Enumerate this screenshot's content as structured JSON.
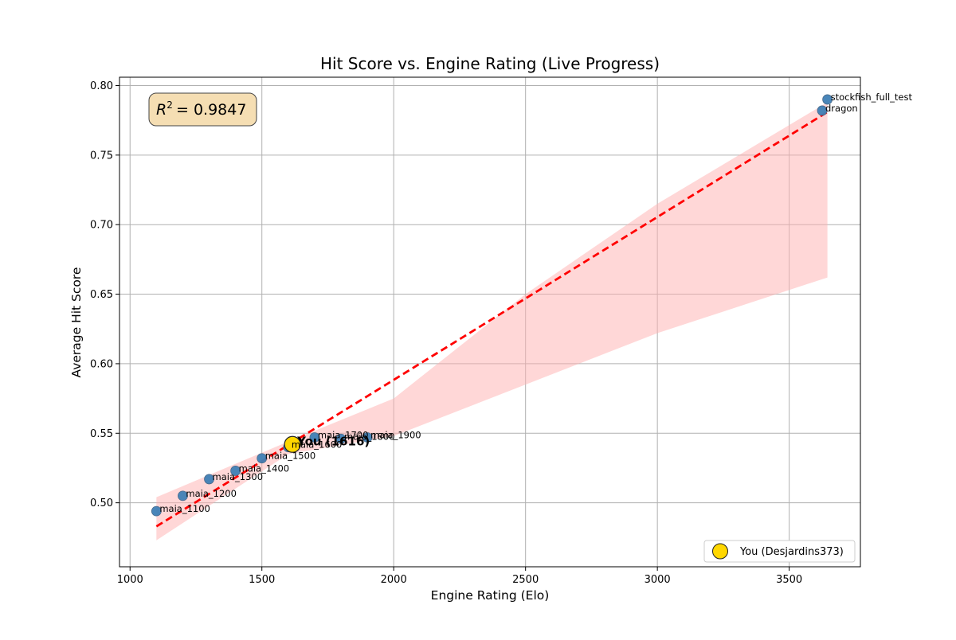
{
  "chart_data": {
    "type": "scatter",
    "title": "Hit Score vs. Engine Rating (Live Progress)",
    "xlabel": "Engine Rating (Elo)",
    "ylabel": "Average Hit Score",
    "xlim": [
      960,
      3770
    ],
    "ylim": [
      0.454,
      0.806
    ],
    "xticks": [
      1000,
      1500,
      2000,
      2500,
      3000,
      3500
    ],
    "yticks": [
      0.5,
      0.55,
      0.6,
      0.65,
      0.7,
      0.75,
      0.8
    ],
    "grid": true,
    "legend_position": "lower-right",
    "r_squared_text": "= 0.9847",
    "points": [
      {
        "label": "maia_1100",
        "x": 1100,
        "y": 0.494
      },
      {
        "label": "maia_1200",
        "x": 1200,
        "y": 0.505
      },
      {
        "label": "maia_1300",
        "x": 1300,
        "y": 0.517
      },
      {
        "label": "maia_1400",
        "x": 1400,
        "y": 0.523
      },
      {
        "label": "maia_1500",
        "x": 1500,
        "y": 0.532
      },
      {
        "label": "maia_1600",
        "x": 1600,
        "y": 0.54
      },
      {
        "label": "maia_1700",
        "x": 1700,
        "y": 0.547
      },
      {
        "label": "maia_1800",
        "x": 1800,
        "y": 0.546
      },
      {
        "label": "maia_1900",
        "x": 1900,
        "y": 0.547
      },
      {
        "label": "dragon",
        "x": 3625,
        "y": 0.782
      },
      {
        "label": "stockfish_full_test",
        "x": 3645,
        "y": 0.79
      }
    ],
    "user_point": {
      "label": "You (1616)",
      "legend": "You (Desjardins373)",
      "x": 1616,
      "y": 0.542
    },
    "regression_line": {
      "x": [
        1100,
        3645
      ],
      "y": [
        0.483,
        0.781
      ]
    },
    "confidence_band": {
      "x": [
        1100,
        1600,
        2000,
        2500,
        3000,
        3645
      ],
      "upper": [
        0.504,
        0.544,
        0.575,
        0.65,
        0.715,
        0.788
      ],
      "lower": [
        0.473,
        0.535,
        0.548,
        0.585,
        0.622,
        0.662
      ]
    },
    "colors": {
      "points": "#3f7fb5",
      "points_edge": "#4a6a8a",
      "regression": "#ff0000",
      "band": "#ffb0b0",
      "user": "#ffd700",
      "user_edge": "#222222",
      "stats_box": "#f5deb3"
    }
  }
}
